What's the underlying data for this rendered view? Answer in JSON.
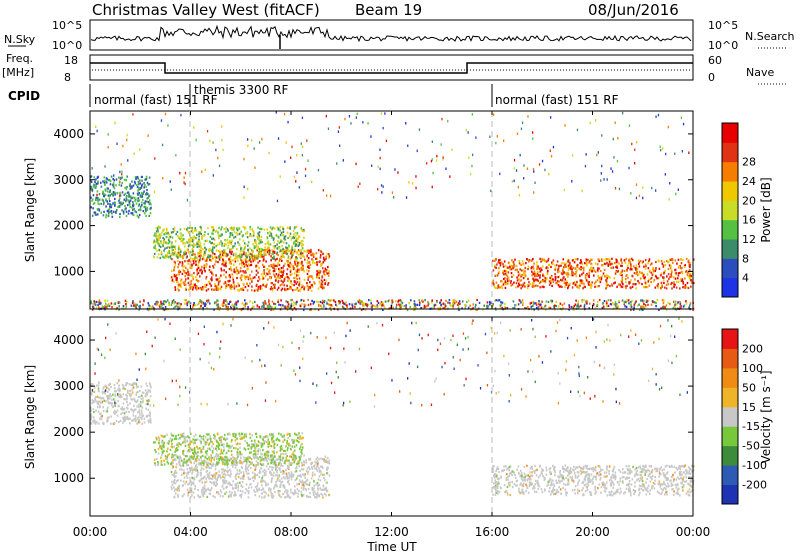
{
  "header": {
    "station": "Christmas Valley West (fitACF)",
    "beam": "Beam 19",
    "date": "08/Jun/2016"
  },
  "noise_panel": {
    "left_label": "N.Sky",
    "right_label": "N.Search",
    "left_ticks": [
      "10^5",
      "10^0"
    ],
    "right_ticks": [
      "10^5",
      "10^0"
    ]
  },
  "freq_panel": {
    "left_label_1": "Freq.",
    "left_label_2": "[MHz]",
    "right_label": "Nave",
    "left_ticks": [
      "18",
      "8"
    ],
    "right_ticks": [
      "60",
      "0"
    ]
  },
  "cpid": {
    "label": "CPID",
    "segments": [
      {
        "text": "normal (fast) 151 RF",
        "start_hour": 0
      },
      {
        "text": "themis 3300 RF",
        "start_hour": 4
      },
      {
        "text": "normal (fast) 151 RF",
        "start_hour": 16
      }
    ]
  },
  "x_axis": {
    "label": "Time UT",
    "ticks": [
      "00:00",
      "04:00",
      "08:00",
      "12:00",
      "16:00",
      "20:00",
      "00:00"
    ],
    "range_hours": [
      0,
      24
    ]
  },
  "chart_data": [
    {
      "type": "heatmap",
      "title": "",
      "ylabel": "Slant Range [km]",
      "xlabel": "",
      "ylim": [
        180,
        4500
      ],
      "yticks": [
        "1000",
        "2000",
        "3000",
        "4000"
      ],
      "colorbar": {
        "label": "Power [dB]",
        "ticks": [
          "4",
          "8",
          "12",
          "16",
          "20",
          "24",
          "28"
        ],
        "colors": [
          "#1e32e6",
          "#2c4dbd",
          "#3c8c6c",
          "#55c142",
          "#c8dc28",
          "#f0c800",
          "#f57d00",
          "#e13214",
          "#e60000"
        ]
      },
      "regions": [
        {
          "t0": 0.0,
          "t1": 2.4,
          "r0": 2200,
          "r1": 3100,
          "level": "8-16 dB"
        },
        {
          "t0": 3.2,
          "t1": 9.5,
          "r0": 600,
          "r1": 1500,
          "level": "20-30 dB"
        },
        {
          "t0": 2.5,
          "t1": 8.5,
          "r0": 1300,
          "r1": 2000,
          "level": "12-20 dB"
        },
        {
          "t0": 16.0,
          "t1": 24.0,
          "r0": 650,
          "r1": 1300,
          "level": "20-30 dB"
        },
        {
          "t0": 0.0,
          "t1": 24.0,
          "r0": 180,
          "r1": 400,
          "level": "ground scatter"
        }
      ]
    },
    {
      "type": "heatmap",
      "title": "",
      "ylabel": "Slant Range [km]",
      "xlabel": "Time UT",
      "ylim": [
        180,
        4500
      ],
      "yticks": [
        "1000",
        "2000",
        "3000",
        "4000"
      ],
      "colorbar": {
        "label": "Velocity [m s⁻¹]",
        "ticks": [
          "200",
          "100",
          "50",
          "15",
          "-15",
          "-50",
          "-100",
          "-200"
        ],
        "colors": [
          "#1e32b4",
          "#2d5ab4",
          "#3c8c3c",
          "#78c83c",
          "#c8c8c8",
          "#f0b428",
          "#f08c14",
          "#e65a14",
          "#e61414"
        ]
      },
      "regions": [
        {
          "t0": 0.0,
          "t1": 2.4,
          "r0": 2200,
          "r1": 3100,
          "level": "ground scatter (grey)"
        },
        {
          "t0": 3.2,
          "t1": 9.5,
          "r0": 600,
          "r1": 1500,
          "level": "mostly grey / low velocity"
        },
        {
          "t0": 2.5,
          "t1": 8.5,
          "r0": 1300,
          "r1": 2000,
          "level": "green / orange mixed"
        },
        {
          "t0": 16.0,
          "t1": 24.0,
          "r0": 650,
          "r1": 1300,
          "level": "grey"
        }
      ]
    }
  ]
}
